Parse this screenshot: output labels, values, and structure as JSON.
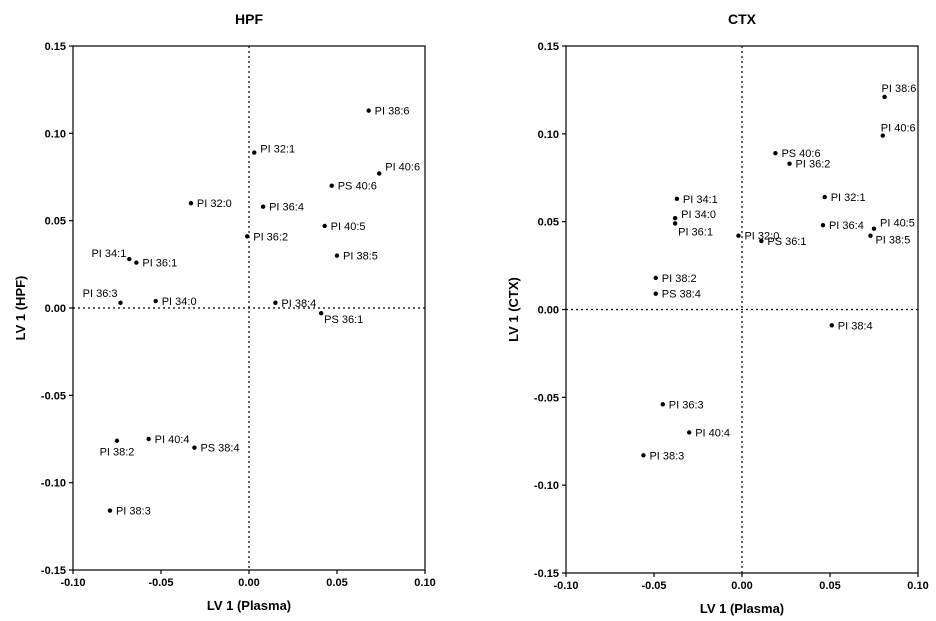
{
  "chart_data": [
    {
      "type": "scatter",
      "title": "HPF",
      "xlabel": "LV 1 (Plasma)",
      "ylabel": "LV 1 (HPF)",
      "xlim": [
        -0.1,
        0.1
      ],
      "ylim": [
        -0.15,
        0.15
      ],
      "xticks": [
        "-0.10",
        "-0.05",
        "0.00",
        "0.05",
        "0.10"
      ],
      "yticks": [
        "0.15",
        "0.10",
        "0.05",
        "0.00",
        "-0.05",
        "-0.10",
        "-0.15"
      ],
      "grid": false,
      "points": [
        {
          "label": "PI 38:6",
          "x": 0.068,
          "y": 0.113
        },
        {
          "label": "PI 40:6",
          "x": 0.074,
          "y": 0.077
        },
        {
          "label": "PI 32:1",
          "x": 0.003,
          "y": 0.089
        },
        {
          "label": "PS 40:6",
          "x": 0.047,
          "y": 0.07
        },
        {
          "label": "PI 32:0",
          "x": -0.033,
          "y": 0.06
        },
        {
          "label": "PI 36:4",
          "x": 0.008,
          "y": 0.058
        },
        {
          "label": "PI 40:5",
          "x": 0.043,
          "y": 0.047
        },
        {
          "label": "PI 36:2",
          "x": -0.001,
          "y": 0.041
        },
        {
          "label": "PI 34:1",
          "x": -0.068,
          "y": 0.028
        },
        {
          "label": "PI 36:1",
          "x": -0.064,
          "y": 0.026
        },
        {
          "label": "PI 38:5",
          "x": 0.05,
          "y": 0.03
        },
        {
          "label": "PI 36:3",
          "x": -0.073,
          "y": 0.003
        },
        {
          "label": "PI 34:0",
          "x": -0.053,
          "y": 0.004
        },
        {
          "label": "PI 38:4",
          "x": 0.015,
          "y": 0.003
        },
        {
          "label": "PS 36:1",
          "x": 0.041,
          "y": -0.003
        },
        {
          "label": "PI 40:4",
          "x": -0.057,
          "y": -0.075
        },
        {
          "label": "PI 38:2",
          "x": -0.075,
          "y": -0.076
        },
        {
          "label": "PS 38:4",
          "x": -0.031,
          "y": -0.08
        },
        {
          "label": "PI 38:3",
          "x": -0.079,
          "y": -0.116
        }
      ]
    },
    {
      "type": "scatter",
      "title": "CTX",
      "xlabel": "LV 1 (Plasma)",
      "ylabel": "LV 1 (CTX)",
      "xlim": [
        -0.1,
        0.1
      ],
      "ylim": [
        -0.15,
        0.15
      ],
      "xticks": [
        "-0.10",
        "-0.05",
        "0.00",
        "0.05",
        "0.10"
      ],
      "yticks": [
        "0.15",
        "0.10",
        "0.05",
        "0.00",
        "-0.05",
        "-0.10",
        "-0.15"
      ],
      "grid": false,
      "points": [
        {
          "label": "PI 38:6",
          "x": 0.081,
          "y": 0.121
        },
        {
          "label": "PI 40:6",
          "x": 0.08,
          "y": 0.099
        },
        {
          "label": "PS 40:6",
          "x": 0.019,
          "y": 0.089
        },
        {
          "label": "PI 36:2",
          "x": 0.027,
          "y": 0.083
        },
        {
          "label": "PI 32:1",
          "x": 0.047,
          "y": 0.064
        },
        {
          "label": "PI 34:1",
          "x": -0.037,
          "y": 0.063
        },
        {
          "label": "PI 34:0",
          "x": -0.038,
          "y": 0.052
        },
        {
          "label": "PI 36:1",
          "x": -0.038,
          "y": 0.049
        },
        {
          "label": "PI 36:4",
          "x": 0.046,
          "y": 0.048
        },
        {
          "label": "PI 40:5",
          "x": 0.075,
          "y": 0.046
        },
        {
          "label": "PI 32:0",
          "x": -0.002,
          "y": 0.042
        },
        {
          "label": "PI 38:5",
          "x": 0.073,
          "y": 0.042
        },
        {
          "label": "PS 36:1",
          "x": 0.011,
          "y": 0.039
        },
        {
          "label": "PI 38:2",
          "x": -0.049,
          "y": 0.018
        },
        {
          "label": "PS 38:4",
          "x": -0.049,
          "y": 0.009
        },
        {
          "label": "PI 38:4",
          "x": 0.051,
          "y": -0.009
        },
        {
          "label": "PI 36:3",
          "x": -0.045,
          "y": -0.054
        },
        {
          "label": "PI 40:4",
          "x": -0.03,
          "y": -0.07
        },
        {
          "label": "PI 38:3",
          "x": -0.056,
          "y": -0.083
        }
      ]
    }
  ]
}
